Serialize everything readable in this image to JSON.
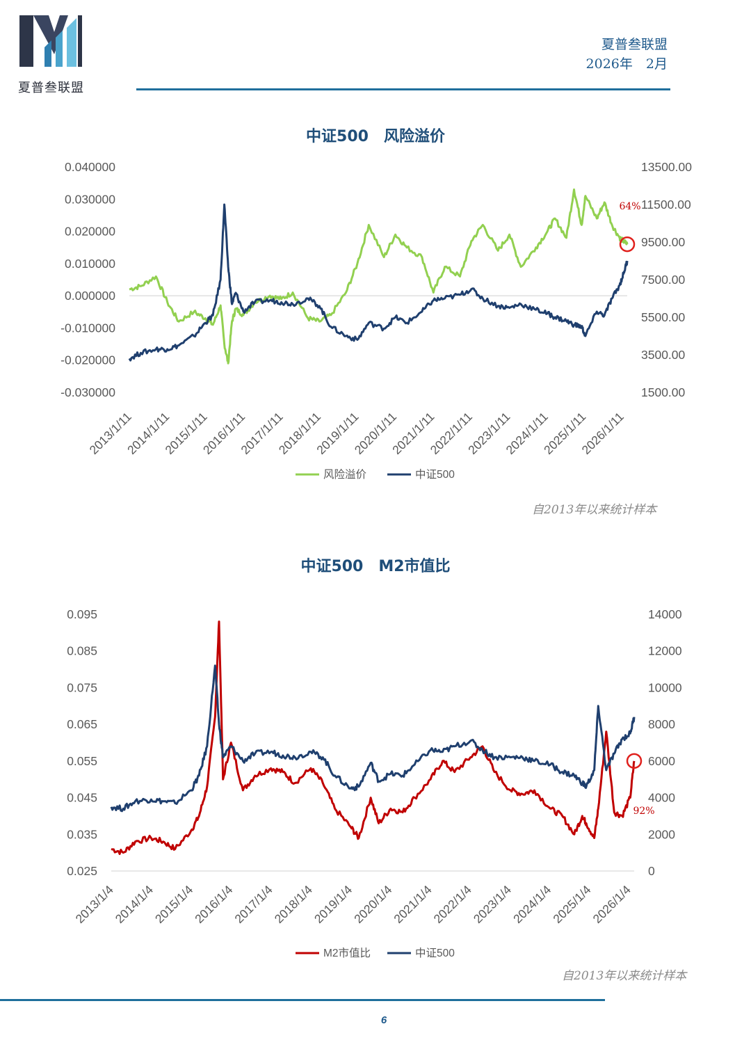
{
  "brand": {
    "name": "夏普叁联盟",
    "colors": {
      "primary": "#1f4e79",
      "accent_line": "#1f6f9c"
    }
  },
  "header": {
    "org": "夏普叁联盟",
    "date": "2026年　2月"
  },
  "page_number": "6",
  "chart_data": [
    {
      "type": "line",
      "title": "中证500　风险溢价",
      "note": "自2013年以来统计样本",
      "x_labels": [
        "2013/1/11",
        "2014/1/11",
        "2015/1/11",
        "2016/1/11",
        "2017/1/11",
        "2018/1/11",
        "2019/1/11",
        "2020/1/11",
        "2021/1/11",
        "2022/1/11",
        "2023/1/11",
        "2024/1/11",
        "2025/1/11",
        "2026/1/11"
      ],
      "x": [
        2013.0,
        2013.3,
        2013.7,
        2014.0,
        2014.3,
        2014.7,
        2015.0,
        2015.2,
        2015.4,
        2015.5,
        2015.6,
        2015.7,
        2015.8,
        2016.0,
        2016.3,
        2016.7,
        2017.0,
        2017.3,
        2017.7,
        2018.0,
        2018.3,
        2018.7,
        2019.0,
        2019.3,
        2019.7,
        2020.0,
        2020.3,
        2020.7,
        2021.0,
        2021.3,
        2021.7,
        2022.0,
        2022.3,
        2022.7,
        2023.0,
        2023.3,
        2023.7,
        2024.0,
        2024.2,
        2024.5,
        2024.7,
        2024.9,
        2025.0,
        2025.3,
        2025.5,
        2025.7,
        2025.9,
        2026.0,
        2026.1
      ],
      "y_left": {
        "min": -0.03,
        "max": 0.04,
        "ticks": [
          "-0.030000",
          "-0.020000",
          "-0.010000",
          "0.000000",
          "0.010000",
          "0.020000",
          "0.030000",
          "0.040000"
        ]
      },
      "y_right": {
        "min": 1500,
        "max": 13500,
        "ticks": [
          "1500.00",
          "3500.00",
          "5500.00",
          "7500.00",
          "9500.00",
          "11500.00",
          "13500.00"
        ]
      },
      "series": [
        {
          "name": "风险溢价",
          "axis": "left",
          "color": "#92d050",
          "values": [
            0.002,
            0.003,
            0.006,
            -0.002,
            -0.008,
            -0.005,
            -0.007,
            -0.009,
            -0.003,
            -0.015,
            -0.021,
            -0.008,
            -0.004,
            -0.006,
            -0.002,
            0.0,
            -0.001,
            0.001,
            -0.007,
            -0.008,
            -0.006,
            0.001,
            0.01,
            0.022,
            0.012,
            0.019,
            0.015,
            0.012,
            0.001,
            0.009,
            0.006,
            0.017,
            0.022,
            0.014,
            0.019,
            0.009,
            0.015,
            0.02,
            0.024,
            0.018,
            0.033,
            0.022,
            0.031,
            0.024,
            0.029,
            0.022,
            0.018,
            0.017,
            0.016
          ]
        },
        {
          "name": "中证500",
          "axis": "right",
          "color": "#1f3f6e",
          "values": [
            3300,
            3600,
            3800,
            3800,
            4000,
            4500,
            5200,
            5600,
            7500,
            11500,
            8200,
            6200,
            6800,
            5800,
            6300,
            6400,
            6300,
            6200,
            6500,
            6100,
            5000,
            4500,
            4300,
            5200,
            4900,
            5500,
            5200,
            5800,
            6400,
            6500,
            6700,
            7000,
            6500,
            6100,
            6000,
            6200,
            5900,
            5700,
            5500,
            5300,
            5100,
            5000,
            4500,
            5800,
            5600,
            6500,
            7200,
            7800,
            8500
          ]
        }
      ],
      "annotation": "64%"
    },
    {
      "type": "line",
      "title": "中证500　M2市值比",
      "note": "自2013年以来统计样本",
      "x_labels": [
        "2013/1/4",
        "2014/1/4",
        "2015/1/4",
        "2016/1/4",
        "2017/1/4",
        "2018/1/4",
        "2019/1/4",
        "2020/1/4",
        "2021/1/4",
        "2022/1/4",
        "2023/1/4",
        "2024/1/4",
        "2025/1/4",
        "2026/1/4"
      ],
      "x": [
        2013.0,
        2013.3,
        2013.6,
        2014.0,
        2014.3,
        2014.6,
        2015.0,
        2015.2,
        2015.4,
        2015.6,
        2015.7,
        2015.8,
        2016.0,
        2016.3,
        2016.6,
        2017.0,
        2017.3,
        2017.6,
        2018.0,
        2018.3,
        2018.6,
        2019.0,
        2019.2,
        2019.5,
        2019.7,
        2020.0,
        2020.3,
        2020.6,
        2021.0,
        2021.3,
        2021.6,
        2022.0,
        2022.3,
        2022.6,
        2023.0,
        2023.3,
        2023.6,
        2024.0,
        2024.3,
        2024.6,
        2024.8,
        2024.9,
        2025.1,
        2025.2,
        2025.4,
        2025.6,
        2025.8,
        2026.0,
        2026.1
      ],
      "y_left": {
        "min": 0.025,
        "max": 0.095,
        "ticks": [
          "0.025",
          "0.035",
          "0.045",
          "0.055",
          "0.065",
          "0.075",
          "0.085",
          "0.095"
        ]
      },
      "y_right": {
        "min": 0,
        "max": 14000,
        "ticks": [
          "0",
          "2000",
          "4000",
          "6000",
          "8000",
          "10000",
          "12000",
          "14000"
        ]
      },
      "series": [
        {
          "name": "M2市值比",
          "axis": "left",
          "color": "#c00000",
          "values": [
            0.031,
            0.03,
            0.033,
            0.034,
            0.033,
            0.031,
            0.036,
            0.04,
            0.048,
            0.067,
            0.093,
            0.05,
            0.06,
            0.047,
            0.051,
            0.053,
            0.052,
            0.049,
            0.053,
            0.049,
            0.042,
            0.037,
            0.034,
            0.045,
            0.038,
            0.042,
            0.041,
            0.045,
            0.05,
            0.055,
            0.052,
            0.056,
            0.059,
            0.052,
            0.047,
            0.046,
            0.047,
            0.042,
            0.04,
            0.035,
            0.04,
            0.038,
            0.034,
            0.042,
            0.063,
            0.041,
            0.04,
            0.045,
            0.055
          ]
        },
        {
          "name": "中证500",
          "axis": "right",
          "color": "#1f3f6e",
          "values": [
            3500,
            3400,
            3800,
            3900,
            3800,
            3700,
            4400,
            5200,
            6800,
            11200,
            8000,
            6200,
            6800,
            6000,
            6400,
            6500,
            6300,
            6200,
            6500,
            6200,
            5200,
            4500,
            4600,
            5900,
            4900,
            5300,
            5200,
            5800,
            6600,
            6500,
            6800,
            7100,
            6600,
            6200,
            6200,
            6200,
            6000,
            5800,
            5400,
            5200,
            4800,
            4600,
            5500,
            9000,
            5500,
            6400,
            7200,
            7500,
            8400
          ]
        }
      ],
      "annotation": "92%"
    }
  ]
}
